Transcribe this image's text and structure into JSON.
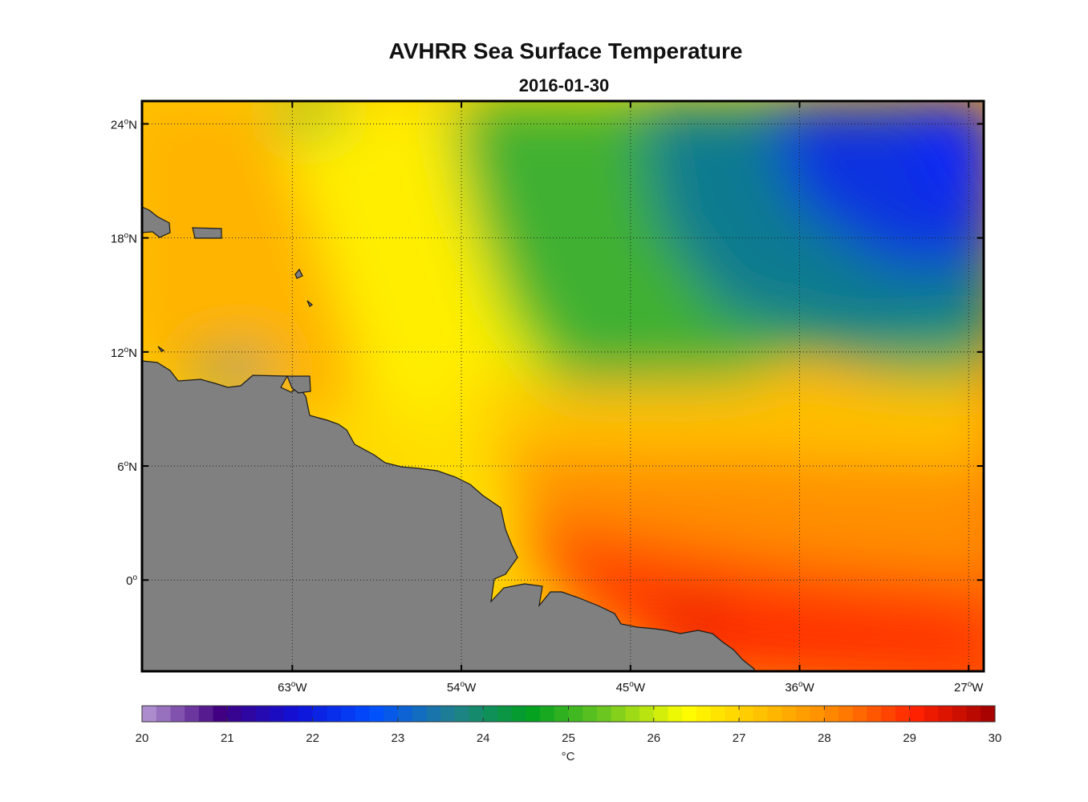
{
  "title": "AVHRR Sea Surface Temperature",
  "subtitle": "2016-01-30",
  "map": {
    "lon_range": [
      -71,
      -26.2
    ],
    "lat_range": [
      -4.8,
      25.2
    ],
    "lat_ticks": [
      {
        "value": 24,
        "deg": "24",
        "hemi": "N"
      },
      {
        "value": 18,
        "deg": "18",
        "hemi": "N"
      },
      {
        "value": 12,
        "deg": "12",
        "hemi": "N"
      },
      {
        "value": 6,
        "deg": "6",
        "hemi": "N"
      },
      {
        "value": 0,
        "deg": "0",
        "hemi": ""
      }
    ],
    "lon_ticks": [
      {
        "value": -63,
        "deg": "63",
        "hemi": "W"
      },
      {
        "value": -54,
        "deg": "54",
        "hemi": "W"
      },
      {
        "value": -45,
        "deg": "45",
        "hemi": "W"
      },
      {
        "value": -36,
        "deg": "36",
        "hemi": "W"
      },
      {
        "value": -27,
        "deg": "27",
        "hemi": "W"
      }
    ],
    "grid": true,
    "land_color": "#808080"
  },
  "colorbar": {
    "min": 20,
    "max": 30,
    "ticks": [
      "20",
      "21",
      "22",
      "23",
      "24",
      "25",
      "26",
      "27",
      "28",
      "29",
      "30"
    ],
    "unit": "°C",
    "colors": [
      "#b89ad6",
      "#400080",
      "#1010d8",
      "#0050ff",
      "#208090",
      "#00a020",
      "#70c820",
      "#ffff00",
      "#ffc000",
      "#ff8000",
      "#ff2000",
      "#a00000"
    ]
  }
}
